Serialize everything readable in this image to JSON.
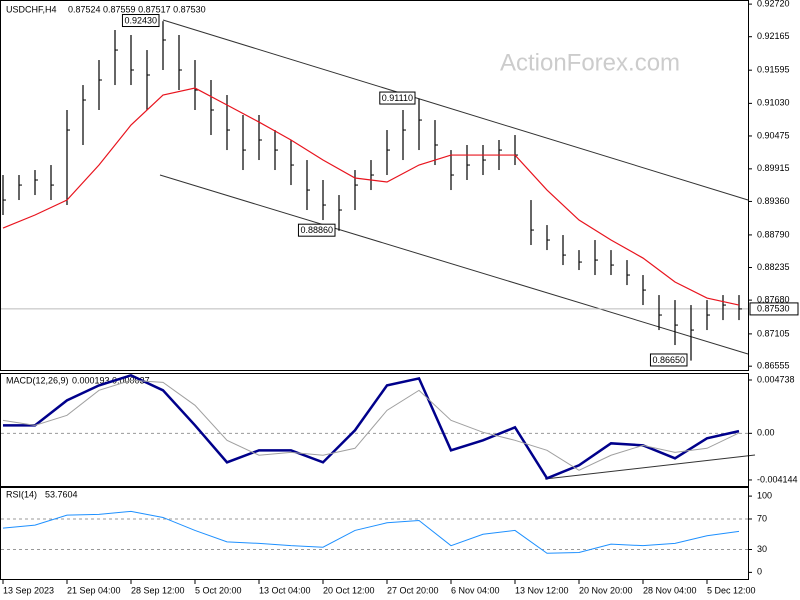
{
  "chart_data": [
    {
      "type": "ohlc",
      "title": "USDCHF,H4",
      "subtitle": "0.87524 0.87559 0.87517 0.87530",
      "watermark": "ActionForex.com",
      "x": [
        0,
        1,
        2,
        3,
        4,
        5,
        6,
        7,
        8,
        9,
        10,
        11,
        12,
        13,
        14,
        15,
        16,
        17,
        18,
        19,
        20,
        21,
        22,
        23,
        24,
        25,
        26,
        27,
        28,
        29,
        30,
        31,
        32,
        33,
        34,
        35,
        36,
        37,
        38,
        39,
        40,
        41,
        42,
        43,
        44,
        45,
        46
      ],
      "high": [
        0.8981,
        0.8981,
        0.89895,
        0.8998,
        0.90917,
        0.91342,
        0.91768,
        0.92279,
        0.92194,
        0.91938,
        0.9243,
        0.92194,
        0.91768,
        0.91428,
        0.91172,
        0.90832,
        0.90832,
        0.90576,
        0.90406,
        0.90065,
        0.89725,
        0.89469,
        0.89895,
        0.90065,
        0.90576,
        0.90917,
        0.9111,
        0.90746,
        0.90235,
        0.90321,
        0.90321,
        0.90406,
        0.90491,
        0.89384,
        0.88958,
        0.88788,
        0.88532,
        0.88703,
        0.88532,
        0.88362,
        0.88107,
        0.87766,
        0.87681,
        0.87596,
        0.87681,
        0.87766,
        0.87766
      ],
      "low": [
        0.89129,
        0.89384,
        0.89469,
        0.89384,
        0.89299,
        0.90321,
        0.90917,
        0.91342,
        0.91342,
        0.90917,
        0.91598,
        0.91257,
        0.90917,
        0.90491,
        0.90235,
        0.89895,
        0.90065,
        0.89895,
        0.89639,
        0.89214,
        0.89043,
        0.8886,
        0.89214,
        0.89554,
        0.8981,
        0.90065,
        0.90235,
        0.8998,
        0.89554,
        0.89725,
        0.8981,
        0.89895,
        0.8998,
        0.88618,
        0.88532,
        0.88277,
        0.88192,
        0.88107,
        0.88107,
        0.87936,
        0.87596,
        0.8717,
        0.86915,
        0.8665,
        0.8717,
        0.8734,
        0.8734
      ],
      "close": [
        0.89384,
        0.89639,
        0.89725,
        0.89639,
        0.90576,
        0.91087,
        0.91428,
        0.91938,
        0.91598,
        0.91513,
        0.92109,
        0.91598,
        0.91257,
        0.90917,
        0.90576,
        0.90235,
        0.90406,
        0.90235,
        0.8998,
        0.89554,
        0.89299,
        0.89214,
        0.89639,
        0.8981,
        0.90235,
        0.90576,
        0.90746,
        0.90321,
        0.8981,
        0.8998,
        0.90065,
        0.90235,
        0.9015,
        0.88873,
        0.88703,
        0.88447,
        0.88328,
        0.88362,
        0.88277,
        0.88107,
        0.87851,
        0.87426,
        0.87255,
        0.8717,
        0.87426,
        0.87596,
        0.8753
      ],
      "color": "#000000",
      "ma": {
        "color": "#e8141e",
        "x": [
          0,
          2,
          4,
          6,
          8,
          10,
          12,
          14,
          16,
          18,
          20,
          22,
          24,
          26,
          28,
          30,
          32,
          34,
          36,
          38,
          40,
          42,
          44,
          46
        ],
        "values": [
          0.88907,
          0.89129,
          0.89384,
          0.8998,
          0.90661,
          0.91172,
          0.91291,
          0.91002,
          0.90712,
          0.90406,
          0.90065,
          0.89759,
          0.89691,
          0.8998,
          0.9015,
          0.9015,
          0.9015,
          0.89554,
          0.89043,
          0.88703,
          0.88396,
          0.87988,
          0.87715,
          0.87596
        ]
      },
      "last_price": {
        "value": 0.8753,
        "label": "0.87530"
      },
      "annotations": [
        {
          "label": "0.92430",
          "x": 10,
          "value": 0.9243
        },
        {
          "label": "0.88860",
          "x": 21,
          "value": 0.8886
        },
        {
          "label": "0.91110",
          "x": 26,
          "value": 0.9111
        },
        {
          "label": "0.86650",
          "x": 43,
          "value": 0.8665
        }
      ],
      "xlim": [
        0,
        46
      ],
      "ylim": [
        0.8649,
        0.9279
      ],
      "yticks": [
        {
          "value": 0.9272,
          "label": "0.92720"
        },
        {
          "value": 0.92165,
          "label": "0.92165"
        },
        {
          "value": 0.91595,
          "label": "0.91595"
        },
        {
          "value": 0.9103,
          "label": "0.91030"
        },
        {
          "value": 0.90475,
          "label": "0.90475"
        },
        {
          "value": 0.89915,
          "label": "0.89915"
        },
        {
          "value": 0.8936,
          "label": "0.89360"
        },
        {
          "value": 0.8879,
          "label": "0.88790"
        },
        {
          "value": 0.88235,
          "label": "0.88235"
        },
        {
          "value": 0.8768,
          "label": "0.87680"
        },
        {
          "value": 0.87105,
          "label": "0.87105"
        },
        {
          "value": 0.86555,
          "label": "0.86555"
        }
      ]
    },
    {
      "type": "line",
      "title": "MACD(12,26,9)",
      "subtitle": "0.000193 0.000037",
      "x": [
        0,
        2,
        4,
        6,
        8,
        10,
        12,
        14,
        16,
        18,
        20,
        22,
        24,
        26,
        28,
        30,
        32,
        34,
        36,
        38,
        40,
        42,
        44,
        46
      ],
      "series": [
        {
          "color": "#00008b",
          "width": 2.5,
          "values": [
            0.00071,
            0.00071,
            0.00293,
            0.00426,
            0.00515,
            0.00382,
            0.00071,
            -0.00258,
            -0.00151,
            -0.00151,
            -0.00258,
            0.00027,
            0.00426,
            0.00488,
            -0.00151,
            -0.00062,
            0.00053,
            -0.004,
            -0.00284,
            -0.00089,
            -0.00107,
            -0.00222,
            -0.00044,
            0.000193
          ]
        },
        {
          "color": "#a0a0a0",
          "width": 1,
          "values": [
            0.00115,
            0.00071,
            0.0016,
            0.00382,
            0.00471,
            0.00453,
            0.00249,
            -0.00062,
            -0.00195,
            -0.00169,
            -0.00195,
            -0.00133,
            0.00204,
            0.00382,
            0.00115,
            9e-05,
            -0.00062,
            -0.00151,
            -0.00329,
            -0.00195,
            -0.00107,
            -0.00169,
            -0.00133,
            3.7e-05
          ]
        }
      ],
      "levels": [
        0
      ],
      "xlim": [
        0,
        46
      ],
      "ylim": [
        -0.00477,
        0.00536
      ],
      "yticks": [
        0.004738,
        {
          "value": 0,
          "label": "0.00"
        },
        -0.004144
      ]
    },
    {
      "type": "line",
      "title": "RSI(14)",
      "subtitle": "53.7604",
      "x": [
        0,
        2,
        4,
        6,
        8,
        10,
        12,
        14,
        16,
        18,
        20,
        22,
        24,
        26,
        28,
        30,
        32,
        34,
        36,
        38,
        40,
        42,
        44,
        46
      ],
      "series": [
        {
          "color": "#1e90ff",
          "width": 1,
          "values": [
            58,
            62,
            75,
            76,
            80,
            72,
            55,
            40,
            38,
            35,
            33,
            55,
            65,
            68,
            35,
            50,
            55,
            25,
            26,
            37,
            35,
            38,
            48,
            53.7604
          ]
        }
      ],
      "levels": [
        70,
        30
      ],
      "xlim": [
        0,
        46
      ],
      "ylim": [
        -10,
        108
      ],
      "yticks": [
        100,
        70,
        30,
        0
      ],
      "xticks": [
        {
          "value": 0,
          "label": "13 Sep 2023"
        },
        {
          "value": 4,
          "label": "21 Sep 04:00"
        },
        {
          "value": 8,
          "label": "28 Sep 12:00"
        },
        {
          "value": 12,
          "label": "5 Oct 20:00"
        },
        {
          "value": 16,
          "label": "13 Oct 04:00"
        },
        {
          "value": 20,
          "label": "20 Oct 12:00"
        },
        {
          "value": 24,
          "label": "27 Oct 20:00"
        },
        {
          "value": 28,
          "label": "6 Nov 04:00"
        },
        {
          "value": 32,
          "label": "13 Nov 12:00"
        },
        {
          "value": 36,
          "label": "20 Nov 20:00"
        },
        {
          "value": 40,
          "label": "28 Nov 04:00"
        },
        {
          "value": 44,
          "label": "5 Dec 12:00"
        }
      ]
    }
  ]
}
